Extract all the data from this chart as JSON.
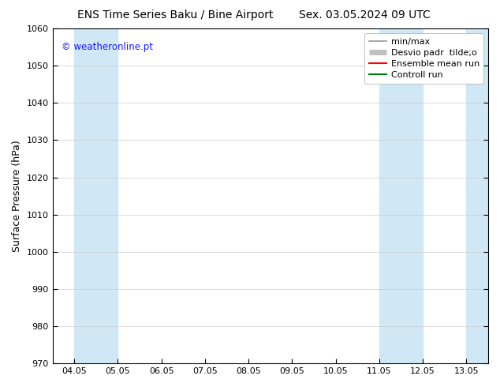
{
  "title_left": "ENS Time Series Baku / Bine Airport",
  "title_right": "Sex. 03.05.2024 09 UTC",
  "ylabel": "Surface Pressure (hPa)",
  "ylim": [
    970,
    1060
  ],
  "yticks": [
    970,
    980,
    990,
    1000,
    1010,
    1020,
    1030,
    1040,
    1050,
    1060
  ],
  "xtick_labels": [
    "04.05",
    "05.05",
    "06.05",
    "07.05",
    "08.05",
    "09.05",
    "10.05",
    "11.05",
    "12.05",
    "13.05"
  ],
  "watermark": "© weatheronline.pt",
  "watermark_color": "#1a1aff",
  "shaded_color": "#d0e8f5",
  "shade_xranges": [
    [
      0.0,
      1.0
    ],
    [
      7.0,
      8.0
    ],
    [
      9.0,
      9.5
    ]
  ],
  "bg_color": "#ffffff",
  "plot_area_color": "#ffffff",
  "title_fontsize": 10,
  "tick_fontsize": 8,
  "ylabel_fontsize": 9,
  "legend_fontsize": 8
}
